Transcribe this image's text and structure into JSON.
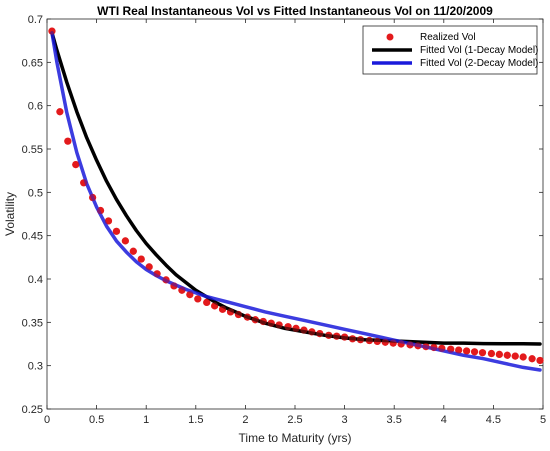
{
  "chart_data": {
    "type": "scatter+line",
    "title": "WTI Real Instantaneous Vol vs Fitted Instantaneous Vol on 11/20/2009",
    "xlabel": "Time to Maturity (yrs)",
    "ylabel": "Volatility",
    "xlim": [
      0,
      5
    ],
    "ylim": [
      0.25,
      0.7
    ],
    "xticks": [
      0,
      0.5,
      1,
      1.5,
      2,
      2.5,
      3,
      3.5,
      4,
      4.5,
      5
    ],
    "yticks": [
      0.25,
      0.3,
      0.35,
      0.4,
      0.45,
      0.5,
      0.55,
      0.6,
      0.65,
      0.7
    ],
    "xtick_labels": [
      "0",
      "0.5",
      "1",
      "1.5",
      "2",
      "2.5",
      "3",
      "3.5",
      "4",
      "4.5",
      "5"
    ],
    "ytick_labels": [
      "0.25",
      "0.3",
      "0.35",
      "0.4",
      "0.45",
      "0.5",
      "0.55",
      "0.6",
      "0.65",
      "0.7"
    ],
    "grid": false,
    "legend_position": "top-right",
    "series": [
      {
        "name": "Realized Vol",
        "style": "markers",
        "color": "#e31a1c",
        "x": [
          0.05,
          0.13,
          0.21,
          0.29,
          0.37,
          0.46,
          0.54,
          0.62,
          0.7,
          0.79,
          0.87,
          0.95,
          1.03,
          1.11,
          1.2,
          1.28,
          1.36,
          1.44,
          1.52,
          1.61,
          1.69,
          1.77,
          1.85,
          1.93,
          2.02,
          2.1,
          2.18,
          2.26,
          2.34,
          2.43,
          2.51,
          2.59,
          2.67,
          2.75,
          2.84,
          2.92,
          3.0,
          3.08,
          3.16,
          3.25,
          3.33,
          3.41,
          3.49,
          3.57,
          3.66,
          3.74,
          3.82,
          3.9,
          3.98,
          4.07,
          4.15,
          4.23,
          4.31,
          4.39,
          4.48,
          4.56,
          4.64,
          4.72,
          4.8,
          4.89,
          4.97
        ],
        "y": [
          0.686,
          0.593,
          0.559,
          0.532,
          0.511,
          0.494,
          0.479,
          0.467,
          0.455,
          0.444,
          0.432,
          0.423,
          0.414,
          0.406,
          0.399,
          0.392,
          0.387,
          0.382,
          0.377,
          0.373,
          0.369,
          0.365,
          0.362,
          0.359,
          0.356,
          0.353,
          0.351,
          0.349,
          0.347,
          0.345,
          0.343,
          0.341,
          0.339,
          0.337,
          0.335,
          0.334,
          0.333,
          0.331,
          0.33,
          0.329,
          0.328,
          0.327,
          0.326,
          0.325,
          0.324,
          0.323,
          0.322,
          0.321,
          0.32,
          0.319,
          0.318,
          0.317,
          0.316,
          0.315,
          0.314,
          0.313,
          0.312,
          0.311,
          0.31,
          0.308,
          0.306
        ]
      },
      {
        "name": "Fitted Vol (1-Decay Model)",
        "style": "line",
        "color": "#000000",
        "x": [
          0.05,
          0.1,
          0.2,
          0.3,
          0.4,
          0.5,
          0.6,
          0.7,
          0.8,
          0.9,
          1.0,
          1.1,
          1.2,
          1.3,
          1.4,
          1.5,
          1.6,
          1.7,
          1.8,
          1.9,
          2.0,
          2.2,
          2.4,
          2.6,
          2.8,
          3.0,
          3.2,
          3.4,
          3.6,
          3.8,
          4.0,
          4.2,
          4.4,
          4.6,
          4.8,
          4.97
        ],
        "y": [
          0.684,
          0.664,
          0.627,
          0.593,
          0.563,
          0.537,
          0.513,
          0.492,
          0.473,
          0.456,
          0.441,
          0.428,
          0.416,
          0.405,
          0.396,
          0.387,
          0.38,
          0.373,
          0.367,
          0.362,
          0.357,
          0.349,
          0.343,
          0.339,
          0.335,
          0.332,
          0.33,
          0.329,
          0.328,
          0.327,
          0.326,
          0.326,
          0.3255,
          0.3253,
          0.3252,
          0.325
        ]
      },
      {
        "name": "Fitted Vol (2-Decay Model)",
        "style": "line",
        "color": "#1a1adb",
        "x": [
          0.05,
          0.1,
          0.2,
          0.3,
          0.4,
          0.5,
          0.6,
          0.7,
          0.8,
          0.9,
          1.0,
          1.1,
          1.2,
          1.3,
          1.4,
          1.5,
          1.6,
          1.7,
          1.8,
          1.9,
          2.0,
          2.2,
          2.4,
          2.6,
          2.8,
          3.0,
          3.2,
          3.4,
          3.6,
          3.8,
          4.0,
          4.2,
          4.4,
          4.6,
          4.8,
          4.97
        ],
        "y": [
          0.684,
          0.65,
          0.592,
          0.546,
          0.51,
          0.483,
          0.461,
          0.444,
          0.431,
          0.42,
          0.411,
          0.404,
          0.398,
          0.393,
          0.388,
          0.384,
          0.38,
          0.377,
          0.374,
          0.371,
          0.368,
          0.362,
          0.357,
          0.352,
          0.347,
          0.342,
          0.337,
          0.332,
          0.327,
          0.322,
          0.317,
          0.312,
          0.308,
          0.303,
          0.298,
          0.295
        ]
      }
    ]
  }
}
